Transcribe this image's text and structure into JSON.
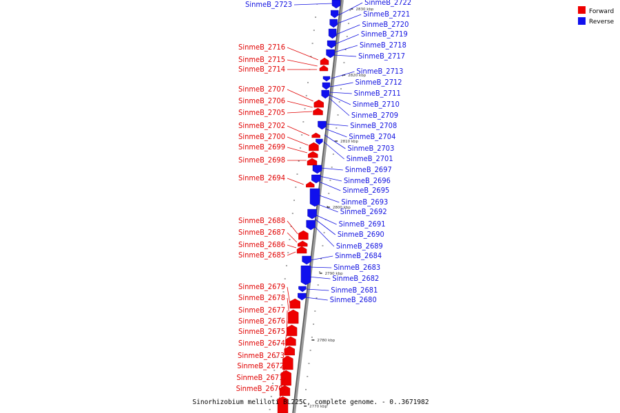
{
  "title": "Sinorhizobium meliloti BL225C, complete genome. - 0..3671982",
  "legend": [
    {
      "label": "Forward",
      "color": "#ee0000"
    },
    {
      "label": "Reverse",
      "color": "#1010ee"
    }
  ],
  "ticks": [
    "2830 kbp",
    "2820 kbp",
    "2810 kbp",
    "2800 kbp",
    "2790 kbp",
    "2780 kbp",
    "2770 kbp"
  ],
  "forward_genes": [
    "SinmeB_2716",
    "SinmeB_2715",
    "SinmeB_2714",
    "SinmeB_2707",
    "SinmeB_2706",
    "SinmeB_2705",
    "SinmeB_2702",
    "SinmeB_2700",
    "SinmeB_2699",
    "SinmeB_2698",
    "SinmeB_2694",
    "SinmeB_2688",
    "SinmeB_2687",
    "SinmeB_2686",
    "SinmeB_2685",
    "SinmeB_2679",
    "SinmeB_2678",
    "SinmeB_2677",
    "SinmeB_2676",
    "SinmeB_2675",
    "SinmeB_2674",
    "SinmeB_2673",
    "SinmeB_2672",
    "SinmeB_2671",
    "SinmeB_2670"
  ],
  "reverse_genes": [
    "SinmeB_2723",
    "SinmeB_2722",
    "SinmeB_2721",
    "SinmeB_2720",
    "SinmeB_2719",
    "SinmeB_2718",
    "SinmeB_2717",
    "SinmeB_2713",
    "SinmeB_2712",
    "SinmeB_2711",
    "SinmeB_2710",
    "SinmeB_2709",
    "SinmeB_2708",
    "SinmeB_2704",
    "SinmeB_2703",
    "SinmeB_2701",
    "SinmeB_2697",
    "SinmeB_2696",
    "SinmeB_2695",
    "SinmeB_2693",
    "SinmeB_2692",
    "SinmeB_2691",
    "SinmeB_2690",
    "SinmeB_2689",
    "SinmeB_2684",
    "SinmeB_2683",
    "SinmeB_2682",
    "SinmeB_2681",
    "SinmeB_2680"
  ]
}
